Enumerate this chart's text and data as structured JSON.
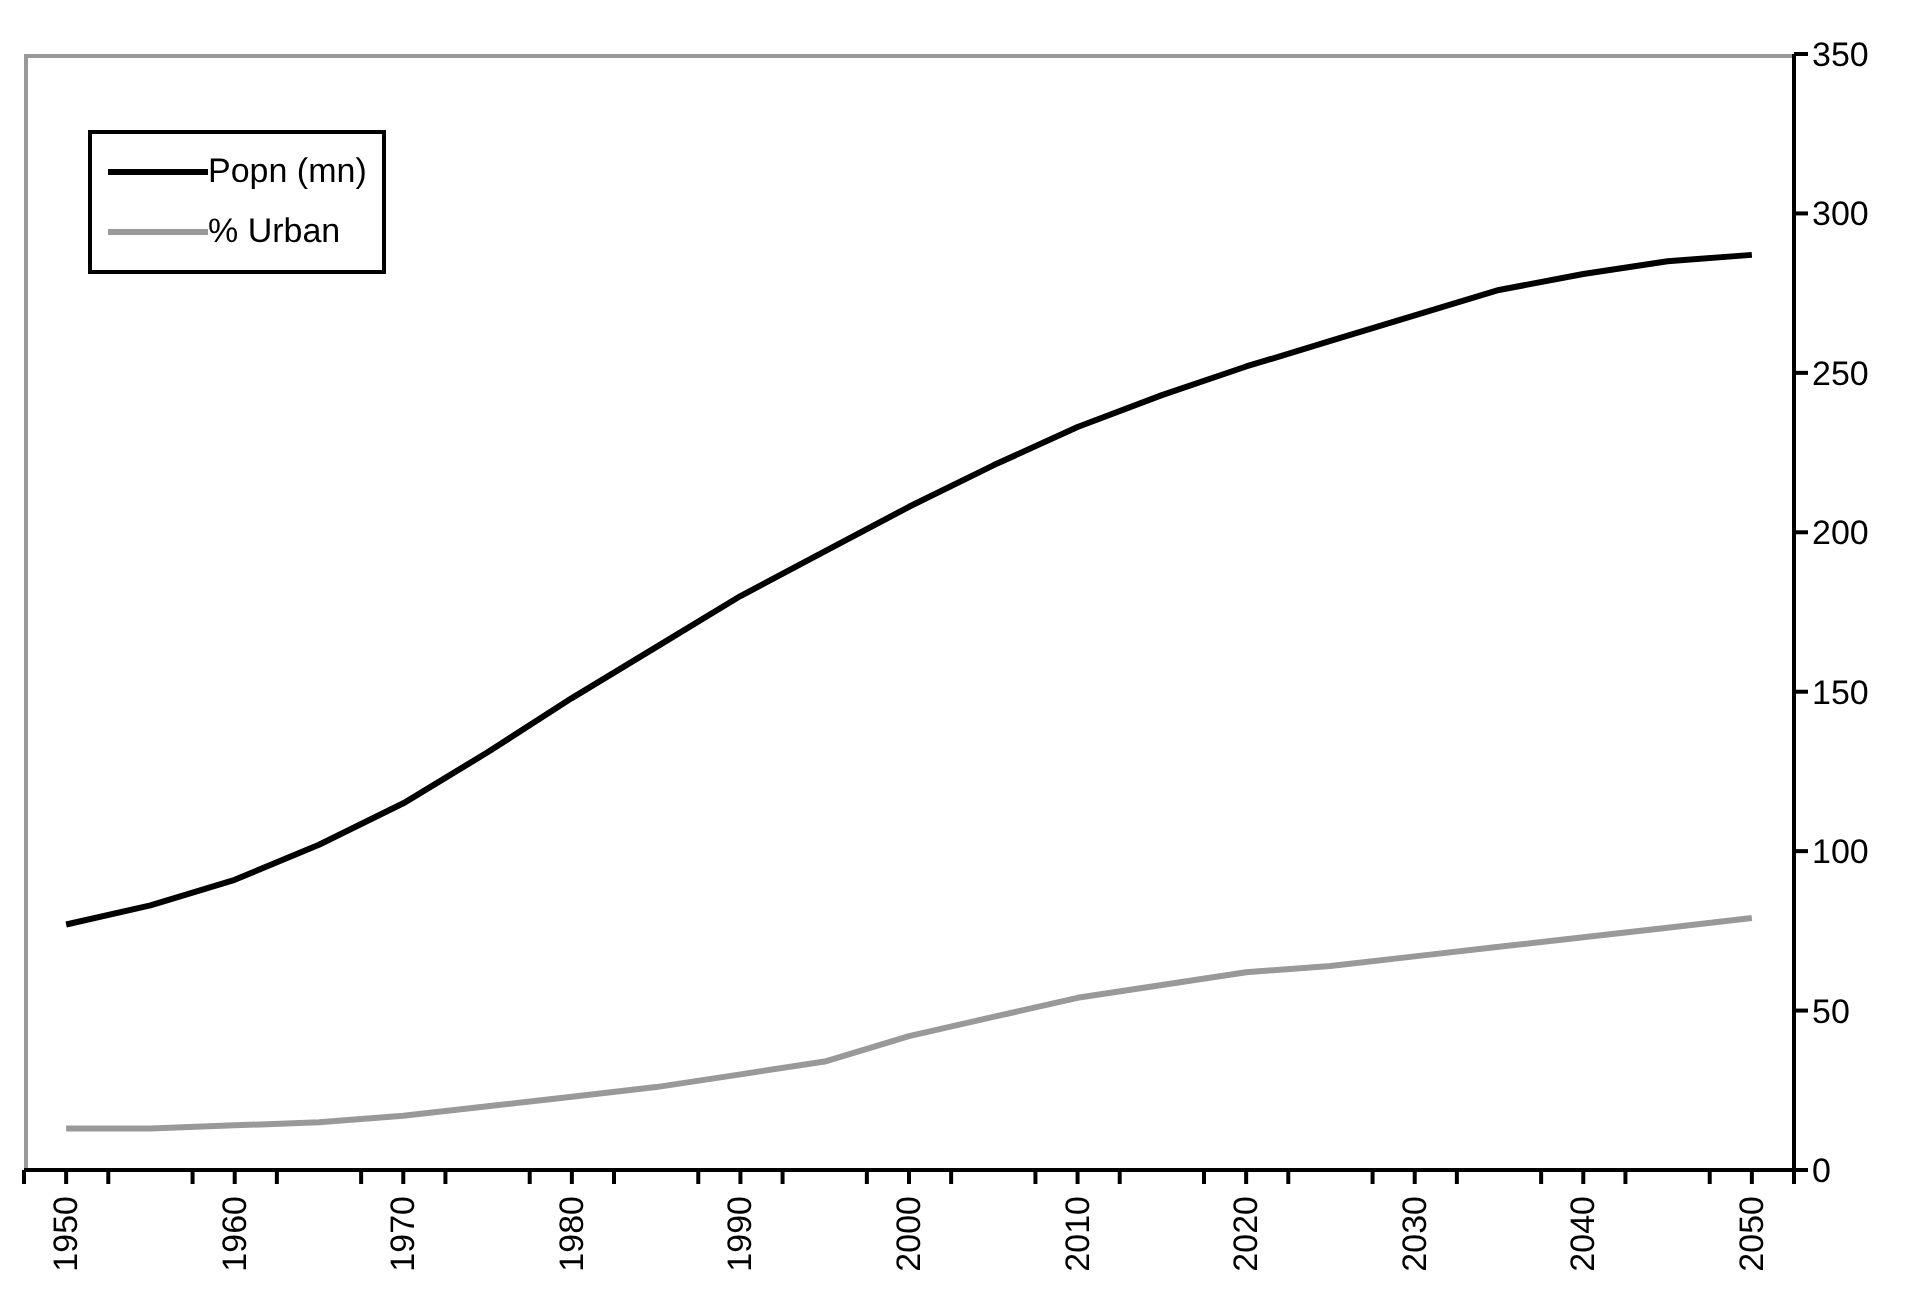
{
  "chart_data": {
    "type": "line",
    "x": [
      1950,
      1955,
      1960,
      1965,
      1970,
      1975,
      1980,
      1985,
      1990,
      1995,
      2000,
      2005,
      2010,
      2015,
      2020,
      2025,
      2030,
      2035,
      2040,
      2045,
      2050
    ],
    "series": [
      {
        "name": "Popn (mn)",
        "color": "#000000",
        "values": [
          77,
          83,
          91,
          102,
          115,
          131,
          148,
          164,
          180,
          194,
          208,
          221,
          233,
          243,
          252,
          260,
          268,
          276,
          281,
          285,
          287
        ]
      },
      {
        "name": "% Urban",
        "color": "#999999",
        "values": [
          13,
          13,
          14,
          15,
          17,
          20,
          23,
          26,
          30,
          34,
          42,
          48,
          54,
          58,
          62,
          64,
          67,
          70,
          73,
          76,
          79
        ]
      }
    ],
    "xlim": [
      1947.5,
      2052.5
    ],
    "xticks": [
      {
        "value": 1947.5,
        "label": null
      },
      1950,
      {
        "value": 1952.5,
        "label": null
      },
      {
        "value": 1957.5,
        "label": null
      },
      1960,
      {
        "value": 1962.5,
        "label": null
      },
      {
        "value": 1967.5,
        "label": null
      },
      1970,
      {
        "value": 1972.5,
        "label": null
      },
      {
        "value": 1977.5,
        "label": null
      },
      1980,
      {
        "value": 1982.5,
        "label": null
      },
      {
        "value": 1987.5,
        "label": null
      },
      1990,
      {
        "value": 1992.5,
        "label": null
      },
      {
        "value": 1997.5,
        "label": null
      },
      2000,
      {
        "value": 2002.5,
        "label": null
      },
      {
        "value": 2007.5,
        "label": null
      },
      2010,
      {
        "value": 2012.5,
        "label": null
      },
      {
        "value": 2017.5,
        "label": null
      },
      2020,
      {
        "value": 2022.5,
        "label": null
      },
      {
        "value": 2027.5,
        "label": null
      },
      2030,
      {
        "value": 2032.5,
        "label": null
      },
      {
        "value": 2037.5,
        "label": null
      },
      2040,
      {
        "value": 2042.5,
        "label": null
      },
      {
        "value": 2047.5,
        "label": null
      },
      2050,
      {
        "value": 2052.5,
        "label": null
      }
    ],
    "ylim": [
      0,
      350
    ],
    "yticks": [
      0,
      50,
      100,
      150,
      200,
      250,
      300,
      350
    ],
    "grid": false,
    "legend": "top left",
    "marker": "none",
    "line_style": "solid"
  }
}
